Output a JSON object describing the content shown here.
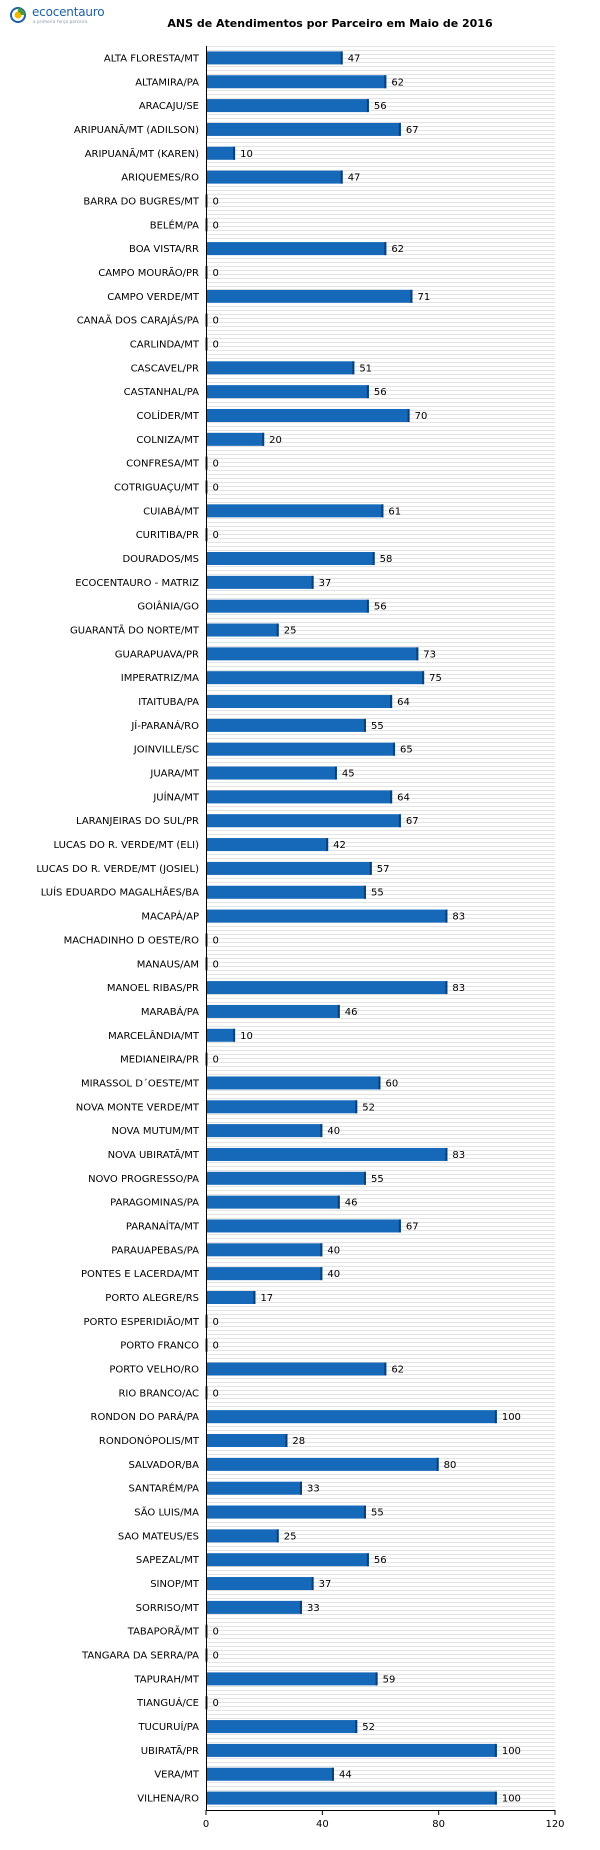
{
  "brand": {
    "name": "ecocentauro",
    "tagline": "a primeira força parceira"
  },
  "colors": {
    "bar": "#1668b8",
    "bar_edge": "#0a3f7a",
    "stripe": "#e4e4e4",
    "logo": "#1f5fa8"
  },
  "chart_data": {
    "type": "bar",
    "orientation": "horizontal",
    "title": "ANS de Atendimentos por Parceiro em Maio de 2016",
    "xlabel": "",
    "ylabel": "",
    "xlim": [
      0,
      120
    ],
    "xticks": [
      0,
      40,
      80,
      120
    ],
    "grid": "horizontal stripes",
    "legend": "none",
    "data_labels": true,
    "categories": [
      "ALTA FLORESTA/MT",
      "ALTAMIRA/PA",
      "ARACAJU/SE",
      "ARIPUANÃ/MT (ADILSON)",
      "ARIPUANÃ/MT (KAREN)",
      "ARIQUEMES/RO",
      "BARRA DO BUGRES/MT",
      "BELÉM/PA",
      "BOA VISTA/RR",
      "CAMPO MOURÃO/PR",
      "CAMPO VERDE/MT",
      "CANAÃ DOS CARAJÁS/PA",
      "CARLINDA/MT",
      "CASCAVEL/PR",
      "CASTANHAL/PA",
      "COLÍDER/MT",
      "COLNIZA/MT",
      "CONFRESA/MT",
      "COTRIGUAÇU/MT",
      "CUIABÁ/MT",
      "CURITIBA/PR",
      "DOURADOS/MS",
      "ECOCENTAURO - MATRIZ",
      "GOIÂNIA/GO",
      "GUARANTÃ DO NORTE/MT",
      "GUARAPUAVA/PR",
      "IMPERATRIZ/MA",
      "ITAITUBA/PA",
      "JÍ-PARANÁ/RO",
      "JOINVILLE/SC",
      "JUARA/MT",
      "JUÍNA/MT",
      "LARANJEIRAS DO SUL/PR",
      "LUCAS DO R. VERDE/MT (ELI)",
      "LUCAS DO R. VERDE/MT (JOSIEL)",
      "LUÍS EDUARDO MAGALHÃES/BA",
      "MACAPÁ/AP",
      "MACHADINHO D OESTE/RO",
      "MANAUS/AM",
      "MANOEL RIBAS/PR",
      "MARABÁ/PA",
      "MARCELÂNDIA/MT",
      "MEDIANEIRA/PR",
      "MIRASSOL D´OESTE/MT",
      "NOVA MONTE VERDE/MT",
      "NOVA MUTUM/MT",
      "NOVA UBIRATÃ/MT",
      "NOVO PROGRESSO/PA",
      "PARAGOMINAS/PA",
      "PARANAÍTA/MT",
      "PARAUAPEBAS/PA",
      "PONTES E LACERDA/MT",
      "PORTO ALEGRE/RS",
      "PORTO ESPERIDIÃO/MT",
      "PORTO FRANCO",
      "PORTO VELHO/RO",
      "RIO BRANCO/AC",
      "RONDON DO PARÁ/PA",
      "RONDONÓPOLIS/MT",
      "SALVADOR/BA",
      "SANTARÉM/PA",
      "SÃO LUIS/MA",
      "SAO MATEUS/ES",
      "SAPEZAL/MT",
      "SINOP/MT",
      "SORRISO/MT",
      "TABAPORÃ/MT",
      "TANGARA DA SERRA/PA",
      "TAPURAH/MT",
      "TIANGUÁ/CE",
      "TUCURUÍ/PA",
      "UBIRATÃ/PR",
      "VERA/MT",
      "VILHENA/RO"
    ],
    "values": [
      47,
      62,
      56,
      67,
      10,
      47,
      0,
      0,
      62,
      0,
      71,
      0,
      0,
      51,
      56,
      70,
      20,
      0,
      0,
      61,
      0,
      58,
      37,
      56,
      25,
      73,
      75,
      64,
      55,
      65,
      45,
      64,
      67,
      42,
      57,
      55,
      83,
      0,
      0,
      83,
      46,
      10,
      0,
      60,
      52,
      40,
      83,
      55,
      46,
      67,
      40,
      40,
      17,
      0,
      0,
      62,
      0,
      100,
      28,
      80,
      33,
      55,
      25,
      56,
      37,
      33,
      0,
      0,
      59,
      0,
      52,
      100,
      44,
      100
    ]
  }
}
